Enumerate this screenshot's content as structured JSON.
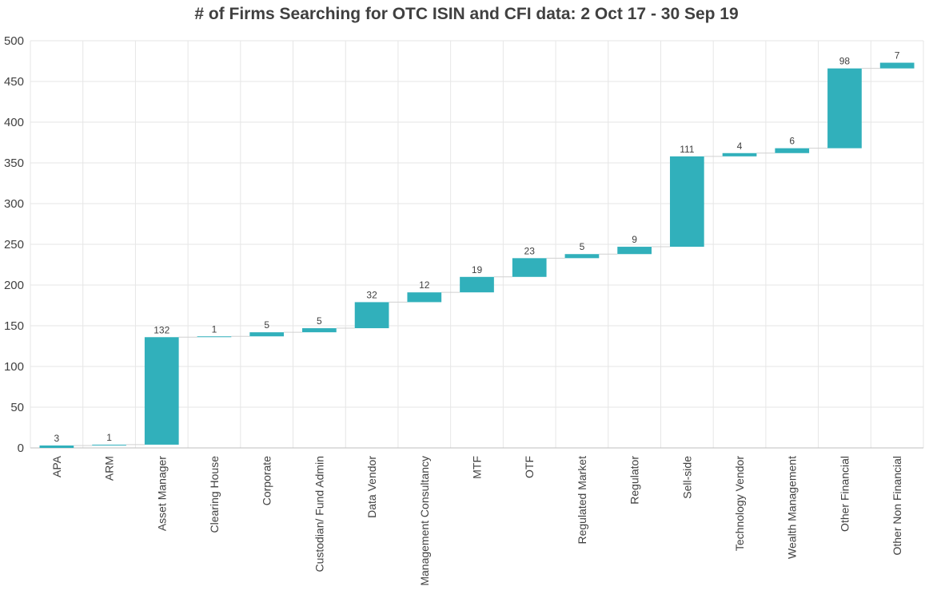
{
  "chart_data": {
    "type": "bar",
    "subtype": "waterfall",
    "title": "# of Firms Searching for OTC ISIN and CFI data: 2 Oct 17 - 30 Sep 19",
    "xlabel": "",
    "ylabel": "",
    "ylim": [
      0,
      500
    ],
    "yticks": [
      0,
      50,
      100,
      150,
      200,
      250,
      300,
      350,
      400,
      450,
      500
    ],
    "grid": true,
    "legend": "none",
    "categories": [
      "APA",
      "ARM",
      "Asset Manager",
      "Clearing House",
      "Corporate",
      "Custodian/ Fund Admin",
      "Data Vendor",
      "Management Consultancy",
      "MTF",
      "OTF",
      "Regulated Market",
      "Regulator",
      "Sell-side",
      "Technology Vendor",
      "Wealth Management",
      "Other Financial",
      "Other Non Financial"
    ],
    "values": [
      3,
      1,
      132,
      1,
      5,
      5,
      32,
      12,
      19,
      23,
      5,
      9,
      111,
      4,
      6,
      98,
      7
    ],
    "bar_color": "#31b0bb",
    "connector_color": "#d0d0d0",
    "grid_color": "#e6e6e6"
  }
}
